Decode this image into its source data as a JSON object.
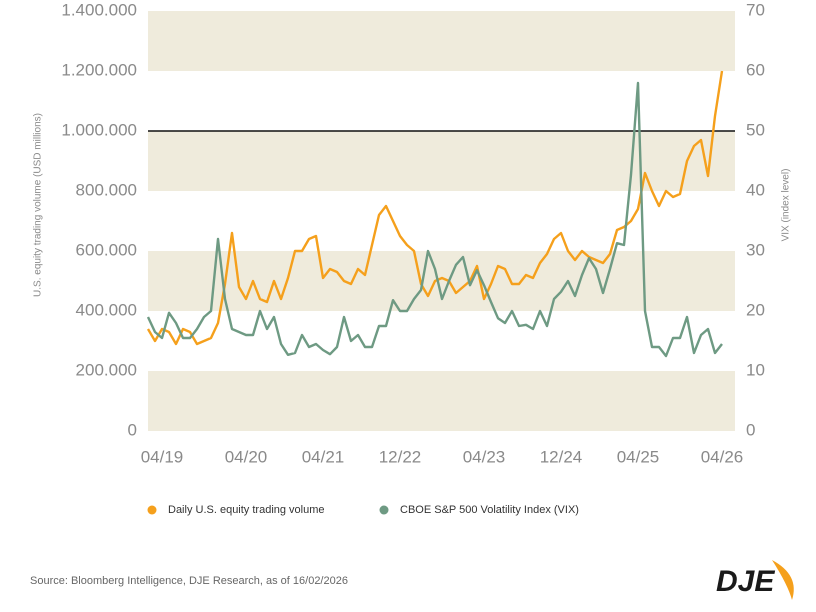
{
  "chart_data": {
    "type": "line",
    "categories": [
      null,
      null,
      "04/19",
      null,
      null,
      null,
      null,
      null,
      null,
      null,
      null,
      null,
      null,
      null,
      "04/20",
      null,
      null,
      null,
      null,
      null,
      null,
      null,
      null,
      null,
      null,
      "04/21",
      null,
      null,
      null,
      null,
      null,
      null,
      null,
      null,
      null,
      null,
      "12/22",
      null,
      null,
      null,
      null,
      null,
      null,
      null,
      null,
      null,
      null,
      null,
      "04/23",
      null,
      null,
      null,
      null,
      null,
      null,
      null,
      null,
      null,
      null,
      "12/24",
      null,
      null,
      null,
      null,
      null,
      null,
      null,
      null,
      null,
      null,
      "04/25",
      null,
      null,
      null,
      null,
      null,
      null,
      null,
      null,
      null,
      null,
      null,
      "04/26"
    ],
    "series": [
      {
        "name": "Daily U.S. equity trading volume",
        "color": "#f5a01c",
        "values": [
          340000,
          300000,
          340000,
          330000,
          290000,
          340000,
          330000,
          290000,
          300000,
          310000,
          360000,
          490000,
          660000,
          480000,
          440000,
          500000,
          440000,
          430000,
          500000,
          440000,
          510000,
          600000,
          600000,
          640000,
          650000,
          510000,
          540000,
          530000,
          500000,
          490000,
          540000,
          520000,
          620000,
          720000,
          750000,
          700000,
          650000,
          620000,
          600000,
          490000,
          450000,
          500000,
          510000,
          500000,
          460000,
          480000,
          500000,
          550000,
          440000,
          490000,
          550000,
          540000,
          490000,
          490000,
          520000,
          510000,
          560000,
          590000,
          640000,
          660000,
          600000,
          570000,
          600000,
          580000,
          570000,
          560000,
          590000,
          670000,
          680000,
          700000,
          740000,
          860000,
          800000,
          750000,
          800000,
          780000,
          790000,
          900000,
          950000,
          970000,
          850000,
          1050000,
          1200000
        ]
      },
      {
        "name": "CBOE S&P 500 Volatility Index (VIX)",
        "color": "#6e9a83",
        "axis": "y2",
        "values": [
          19,
          16.5,
          15.5,
          19.7,
          18,
          15.5,
          15.5,
          17,
          19,
          20,
          32,
          22,
          17,
          16.5,
          16,
          16,
          20,
          17,
          19,
          14.5,
          12.7,
          13,
          16,
          14,
          14.5,
          13.5,
          12.8,
          14,
          19,
          15,
          16,
          14,
          14,
          17.5,
          17.5,
          21.8,
          20,
          20,
          22,
          23.5,
          30,
          27,
          22,
          25,
          27.7,
          29,
          24.3,
          26.8,
          24.3,
          21.5,
          18.8,
          18,
          20,
          17.5,
          17.7,
          17,
          20,
          17.5,
          22,
          23.2,
          25,
          22.5,
          26,
          28.8,
          27,
          23,
          27,
          31.3,
          31,
          42.7,
          58,
          20,
          14,
          14,
          12.5,
          15.5,
          15.5,
          19,
          13,
          16,
          17,
          13,
          14.5
        ]
      }
    ],
    "ylabel": "U.S. equity trading volume (USD millions)",
    "y2label": "VIX (index level)",
    "ylim": [
      0,
      1400000
    ],
    "yticks": [
      0,
      {
        "value": 200000,
        "label": "200.000"
      },
      {
        "value": 400000,
        "label": "400.000"
      },
      {
        "value": 600000,
        "label": "600.000"
      },
      {
        "value": 800000,
        "label": "800.000"
      },
      {
        "value": 1000000,
        "label": "1.000.000"
      },
      {
        "value": 1200000,
        "label": "1.200.000"
      },
      {
        "value": 1400000,
        "label": "1.400.000"
      }
    ],
    "y2lim": [
      0,
      70
    ],
    "y2ticks": [
      0,
      10,
      20,
      30,
      40,
      50,
      60,
      70
    ],
    "reference_line": 1000000,
    "band_color": "#efebdc",
    "source": "Source: Bloomberg Intelligence, DJE Research, as of 16/02/2026",
    "logo": "DJE"
  }
}
